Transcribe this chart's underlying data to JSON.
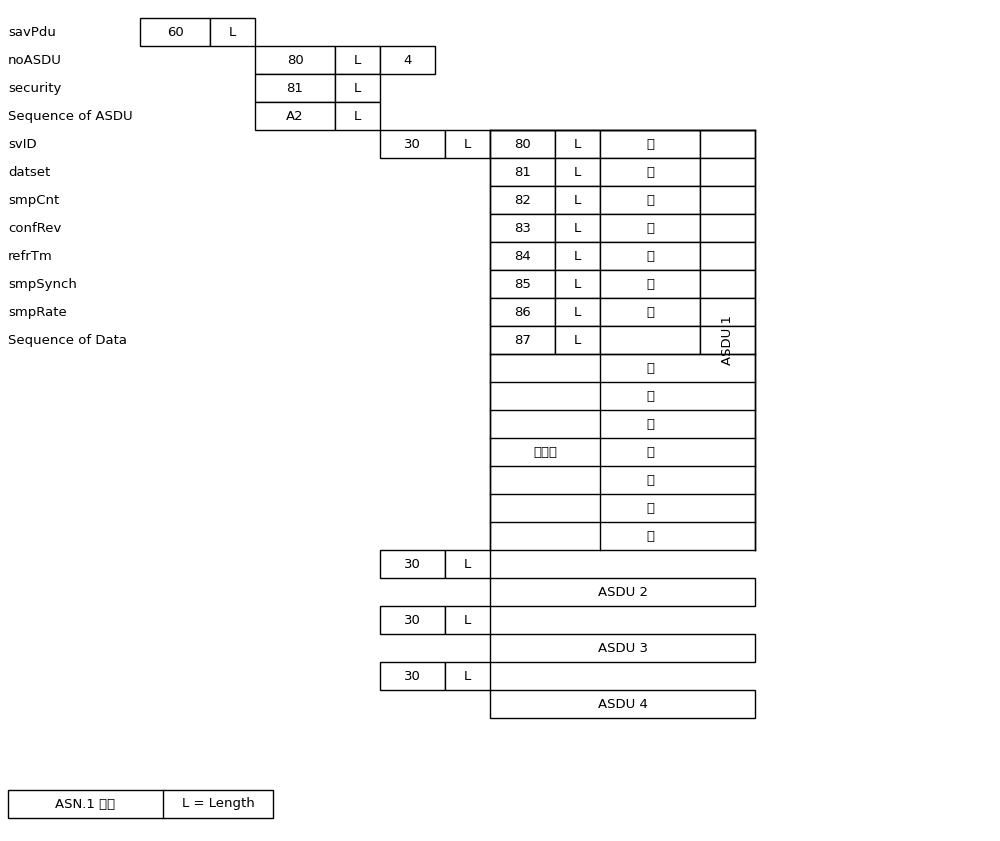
{
  "bg_color": "#ffffff",
  "text_color": "#000000",
  "line_color": "#000000",
  "font_size": 9.5,
  "left_labels": [
    {
      "text": "savPdu",
      "row": 0
    },
    {
      "text": "noASDU",
      "row": 1
    },
    {
      "text": "security",
      "row": 2
    },
    {
      "text": "Sequence of ASDU",
      "row": 3
    },
    {
      "text": "svID",
      "row": 5
    },
    {
      "text": "datset",
      "row": 6
    },
    {
      "text": "smpCnt",
      "row": 7
    },
    {
      "text": "confRev",
      "row": 8
    },
    {
      "text": "refrTm",
      "row": 9
    },
    {
      "text": "smpSynch",
      "row": 10
    },
    {
      "text": "smpRate",
      "row": 11
    },
    {
      "text": "Sequence of Data",
      "row": 12
    }
  ],
  "detail_tags": [
    "80",
    "81",
    "82",
    "83",
    "84",
    "85",
    "86",
    "87"
  ],
  "detail_has_val": [
    true,
    true,
    true,
    true,
    true,
    true,
    true,
    false
  ],
  "n_data_rows": 7,
  "legend_asn": "ASN.1 标记",
  "legend_l": "L = Length",
  "val_char": "値",
  "shuju_char": "数据集"
}
